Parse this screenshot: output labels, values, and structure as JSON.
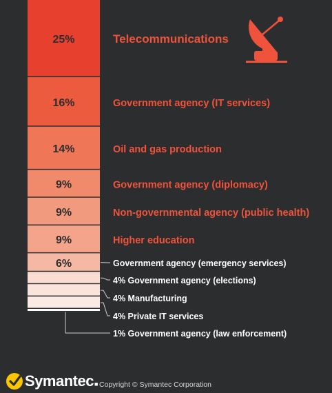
{
  "chart_data": {
    "type": "bar",
    "orientation": "stacked-vertical",
    "categories": [
      "Telecommunications",
      "Government agency (IT services)",
      "Oil and gas production",
      "Government agency (diplomacy)",
      "Non-governmental agency (public health)",
      "Higher education",
      "Government agency (emergency services)",
      "Government agency (elections)",
      "Manufacturing",
      "Private IT services",
      "Government agency (law enforcement)"
    ],
    "values": [
      25,
      16,
      14,
      9,
      9,
      9,
      6,
      4,
      4,
      4,
      1
    ],
    "value_labels": [
      "25%",
      "16%",
      "14%",
      "9%",
      "9%",
      "9%",
      "6%",
      "",
      "",
      "",
      ""
    ],
    "category_labels": [
      "Telecommunications",
      "Government agency (IT services)",
      "Oil and gas production",
      "Government agency (diplomacy)",
      "Non-governmental agency (public health)",
      "Higher education",
      "Government agency (emergency services)",
      "4% Government agency (elections)",
      "4% Manufacturing",
      "4% Private IT services",
      "1% Government agency (law enforcement)"
    ],
    "colors": [
      "#e8402f",
      "#ec5b3e",
      "#ef7757",
      "#f08a6b",
      "#f29a7e",
      "#f3a48a",
      "#f5b8a4",
      "#f9dcd2",
      "#fae3db",
      "#fbe9e3",
      "#ffffff"
    ],
    "label_colors": [
      "#f0533b",
      "#f0533b",
      "#f0533b",
      "#f0533b",
      "#f0533b",
      "#f0533b",
      "#ffffff",
      "#ffffff",
      "#ffffff",
      "#ffffff",
      "#ffffff"
    ],
    "unit": "%"
  },
  "icon": "satellite-dish-icon",
  "footer": {
    "brand": "Symantec",
    "copyright": "Copyright © Symantec Corporation"
  },
  "colors": {
    "background": "#2c2d2f",
    "accent": "#f0533b",
    "logo_yellow": "#f7c600"
  }
}
